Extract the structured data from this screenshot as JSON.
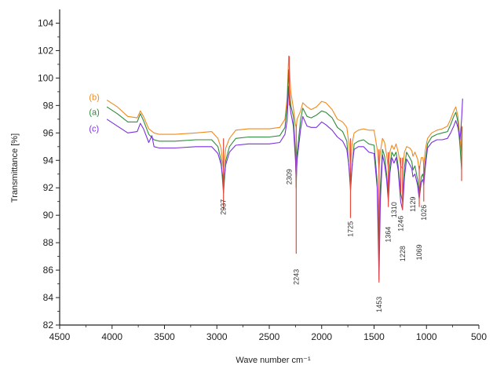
{
  "chart_data": {
    "type": "line",
    "title": "",
    "xlabel": "Wave number cm⁻¹",
    "ylabel": "Transmittance [%]",
    "xlim": [
      4500,
      500
    ],
    "ylim": [
      82,
      105
    ],
    "x_reversed": true,
    "x_ticks": [
      4500,
      4000,
      3500,
      3000,
      2500,
      2000,
      1500,
      1000,
      500
    ],
    "y_ticks": [
      82,
      84,
      86,
      88,
      90,
      92,
      94,
      96,
      98,
      100,
      102,
      104
    ],
    "grid": false,
    "legend": "in-plot labels (left)",
    "series": [
      {
        "name": "(b)",
        "color": "#ee8a1e",
        "points": [
          [
            4050,
            98.4
          ],
          [
            3950,
            97.9
          ],
          [
            3850,
            97.2
          ],
          [
            3760,
            97.1
          ],
          [
            3730,
            97.6
          ],
          [
            3700,
            97.2
          ],
          [
            3650,
            96.3
          ],
          [
            3600,
            96.0
          ],
          [
            3550,
            95.9
          ],
          [
            3400,
            95.9
          ],
          [
            3200,
            96.0
          ],
          [
            3050,
            96.1
          ],
          [
            2990,
            95.6
          ],
          [
            2960,
            94.9
          ],
          [
            2937,
            93.2
          ],
          [
            2915,
            94.9
          ],
          [
            2880,
            95.6
          ],
          [
            2820,
            96.2
          ],
          [
            2700,
            96.3
          ],
          [
            2500,
            96.3
          ],
          [
            2400,
            96.4
          ],
          [
            2350,
            97.0
          ],
          [
            2330,
            98.5
          ],
          [
            2315,
            101.6
          ],
          [
            2309,
            100.8
          ],
          [
            2295,
            99.0
          ],
          [
            2270,
            97.8
          ],
          [
            2250,
            96.6
          ],
          [
            2243,
            96.4
          ],
          [
            2235,
            97.0
          ],
          [
            2200,
            97.6
          ],
          [
            2180,
            98.2
          ],
          [
            2140,
            97.9
          ],
          [
            2100,
            97.7
          ],
          [
            2050,
            97.9
          ],
          [
            2000,
            98.3
          ],
          [
            1960,
            98.2
          ],
          [
            1900,
            97.7
          ],
          [
            1850,
            97.0
          ],
          [
            1800,
            96.8
          ],
          [
            1760,
            96.4
          ],
          [
            1740,
            95.2
          ],
          [
            1725,
            93.5
          ],
          [
            1710,
            95.2
          ],
          [
            1690,
            96.0
          ],
          [
            1650,
            96.2
          ],
          [
            1600,
            96.3
          ],
          [
            1550,
            96.2
          ],
          [
            1500,
            96.2
          ],
          [
            1470,
            94.8
          ],
          [
            1453,
            93.4
          ],
          [
            1440,
            94.6
          ],
          [
            1420,
            95.6
          ],
          [
            1400,
            95.3
          ],
          [
            1380,
            94.4
          ],
          [
            1364,
            93.4
          ],
          [
            1350,
            94.6
          ],
          [
            1330,
            95.1
          ],
          [
            1310,
            94.8
          ],
          [
            1290,
            95.2
          ],
          [
            1270,
            94.6
          ],
          [
            1246,
            93.6
          ],
          [
            1228,
            93.4
          ],
          [
            1210,
            94.6
          ],
          [
            1190,
            95.0
          ],
          [
            1160,
            94.9
          ],
          [
            1140,
            94.7
          ],
          [
            1129,
            94.3
          ],
          [
            1110,
            94.6
          ],
          [
            1085,
            94.1
          ],
          [
            1069,
            93.3
          ],
          [
            1050,
            94.2
          ],
          [
            1035,
            94.2
          ],
          [
            1026,
            93.7
          ],
          [
            1010,
            94.8
          ],
          [
            990,
            95.6
          ],
          [
            950,
            96.0
          ],
          [
            900,
            96.2
          ],
          [
            850,
            96.3
          ],
          [
            800,
            96.5
          ],
          [
            770,
            97.0
          ],
          [
            740,
            97.6
          ],
          [
            720,
            97.9
          ],
          [
            700,
            97.2
          ],
          [
            680,
            95.6
          ],
          [
            665,
            94.5
          ],
          [
            660,
            96.5
          ]
        ]
      },
      {
        "name": "(a)",
        "color": "#2e8b3a",
        "points": [
          [
            4050,
            97.9
          ],
          [
            3950,
            97.4
          ],
          [
            3850,
            96.8
          ],
          [
            3760,
            96.8
          ],
          [
            3730,
            97.4
          ],
          [
            3700,
            96.9
          ],
          [
            3650,
            95.9
          ],
          [
            3600,
            95.5
          ],
          [
            3550,
            95.4
          ],
          [
            3400,
            95.4
          ],
          [
            3200,
            95.5
          ],
          [
            3050,
            95.5
          ],
          [
            2990,
            95.0
          ],
          [
            2960,
            94.0
          ],
          [
            2937,
            91.6
          ],
          [
            2915,
            94.0
          ],
          [
            2880,
            95.0
          ],
          [
            2820,
            95.6
          ],
          [
            2700,
            95.7
          ],
          [
            2500,
            95.7
          ],
          [
            2400,
            95.8
          ],
          [
            2350,
            96.4
          ],
          [
            2330,
            98.0
          ],
          [
            2315,
            100.6
          ],
          [
            2309,
            99.2
          ],
          [
            2295,
            98.0
          ],
          [
            2270,
            97.2
          ],
          [
            2250,
            94.5
          ],
          [
            2243,
            92.0
          ],
          [
            2235,
            94.5
          ],
          [
            2200,
            97.0
          ],
          [
            2180,
            97.8
          ],
          [
            2140,
            97.2
          ],
          [
            2100,
            97.1
          ],
          [
            2050,
            97.3
          ],
          [
            2000,
            97.6
          ],
          [
            1960,
            97.5
          ],
          [
            1900,
            97.1
          ],
          [
            1850,
            96.4
          ],
          [
            1800,
            96.1
          ],
          [
            1760,
            95.4
          ],
          [
            1740,
            93.5
          ],
          [
            1725,
            91.8
          ],
          [
            1710,
            93.5
          ],
          [
            1690,
            95.2
          ],
          [
            1650,
            95.4
          ],
          [
            1600,
            95.5
          ],
          [
            1550,
            95.2
          ],
          [
            1500,
            95.1
          ],
          [
            1470,
            92.5
          ],
          [
            1453,
            88.0
          ],
          [
            1440,
            92.0
          ],
          [
            1420,
            94.8
          ],
          [
            1400,
            94.3
          ],
          [
            1380,
            93.0
          ],
          [
            1364,
            91.4
          ],
          [
            1350,
            93.6
          ],
          [
            1330,
            94.6
          ],
          [
            1310,
            94.3
          ],
          [
            1290,
            94.6
          ],
          [
            1270,
            93.6
          ],
          [
            1246,
            91.6
          ],
          [
            1228,
            91.0
          ],
          [
            1210,
            93.5
          ],
          [
            1190,
            94.6
          ],
          [
            1160,
            94.2
          ],
          [
            1140,
            93.9
          ],
          [
            1129,
            93.3
          ],
          [
            1110,
            93.6
          ],
          [
            1085,
            92.6
          ],
          [
            1069,
            91.5
          ],
          [
            1050,
            92.8
          ],
          [
            1035,
            93.0
          ],
          [
            1026,
            92.5
          ],
          [
            1010,
            94.0
          ],
          [
            990,
            95.2
          ],
          [
            950,
            95.7
          ],
          [
            900,
            95.9
          ],
          [
            850,
            96.0
          ],
          [
            800,
            96.1
          ],
          [
            770,
            96.6
          ],
          [
            740,
            97.2
          ],
          [
            720,
            97.5
          ],
          [
            700,
            96.8
          ],
          [
            680,
            95.0
          ],
          [
            665,
            93.3
          ],
          [
            660,
            96.4
          ]
        ]
      },
      {
        "name": "(c)",
        "color": "#7b2fe0",
        "points": [
          [
            4050,
            97.0
          ],
          [
            3950,
            96.5
          ],
          [
            3850,
            96.0
          ],
          [
            3760,
            96.1
          ],
          [
            3730,
            96.7
          ],
          [
            3700,
            96.3
          ],
          [
            3650,
            95.3
          ],
          [
            3620,
            95.8
          ],
          [
            3600,
            95.0
          ],
          [
            3550,
            94.9
          ],
          [
            3400,
            94.9
          ],
          [
            3200,
            95.0
          ],
          [
            3050,
            95.0
          ],
          [
            2990,
            94.5
          ],
          [
            2960,
            93.7
          ],
          [
            2937,
            92.4
          ],
          [
            2915,
            93.7
          ],
          [
            2880,
            94.6
          ],
          [
            2820,
            95.1
          ],
          [
            2700,
            95.2
          ],
          [
            2500,
            95.2
          ],
          [
            2400,
            95.3
          ],
          [
            2350,
            95.9
          ],
          [
            2330,
            96.9
          ],
          [
            2315,
            99.4
          ],
          [
            2309,
            98.5
          ],
          [
            2295,
            97.5
          ],
          [
            2270,
            96.5
          ],
          [
            2250,
            94.0
          ],
          [
            2243,
            92.6
          ],
          [
            2235,
            94.0
          ],
          [
            2200,
            96.3
          ],
          [
            2180,
            97.2
          ],
          [
            2140,
            96.5
          ],
          [
            2100,
            96.4
          ],
          [
            2050,
            96.4
          ],
          [
            2000,
            96.8
          ],
          [
            1960,
            96.6
          ],
          [
            1900,
            96.2
          ],
          [
            1850,
            95.7
          ],
          [
            1800,
            95.4
          ],
          [
            1760,
            94.8
          ],
          [
            1740,
            93.6
          ],
          [
            1725,
            92.1
          ],
          [
            1710,
            93.6
          ],
          [
            1690,
            94.8
          ],
          [
            1650,
            95.0
          ],
          [
            1600,
            95.0
          ],
          [
            1550,
            94.6
          ],
          [
            1500,
            94.5
          ],
          [
            1470,
            92.0
          ],
          [
            1453,
            85.3
          ],
          [
            1440,
            91.0
          ],
          [
            1420,
            94.4
          ],
          [
            1400,
            93.7
          ],
          [
            1380,
            92.6
          ],
          [
            1364,
            91.0
          ],
          [
            1350,
            93.0
          ],
          [
            1330,
            94.2
          ],
          [
            1310,
            93.8
          ],
          [
            1290,
            94.2
          ],
          [
            1270,
            93.3
          ],
          [
            1246,
            91.0
          ],
          [
            1228,
            90.4
          ],
          [
            1210,
            92.8
          ],
          [
            1190,
            94.1
          ],
          [
            1160,
            93.7
          ],
          [
            1140,
            93.4
          ],
          [
            1129,
            92.8
          ],
          [
            1110,
            93.0
          ],
          [
            1085,
            92.2
          ],
          [
            1069,
            91.2
          ],
          [
            1050,
            92.4
          ],
          [
            1035,
            92.6
          ],
          [
            1026,
            92.2
          ],
          [
            1010,
            93.6
          ],
          [
            990,
            94.9
          ],
          [
            950,
            95.3
          ],
          [
            900,
            95.5
          ],
          [
            850,
            95.5
          ],
          [
            800,
            95.6
          ],
          [
            770,
            96.0
          ],
          [
            740,
            96.5
          ],
          [
            720,
            96.9
          ],
          [
            700,
            96.4
          ],
          [
            680,
            95.5
          ],
          [
            665,
            97.0
          ],
          [
            655,
            98.5
          ]
        ]
      }
    ],
    "spikes": [
      {
        "x": 2937,
        "from": 95.6,
        "to": 90.4
      },
      {
        "x": 2243,
        "from": 96.6,
        "to": 87.2
      },
      {
        "x": 1725,
        "from": 95.6,
        "to": 89.8
      },
      {
        "x": 1453,
        "from": 94.8,
        "to": 85.1
      },
      {
        "x": 1364,
        "from": 94.6,
        "to": 90.6
      },
      {
        "x": 1246,
        "from": 94.2,
        "to": 91.6
      },
      {
        "x": 1228,
        "from": 94.2,
        "to": 90.4
      },
      {
        "x": 1069,
        "from": 93.6,
        "to": 90.6
      },
      {
        "x": 1026,
        "from": 93.8,
        "to": 91.0
      },
      {
        "x": 2309,
        "from": 98.0,
        "to": 101.6
      },
      {
        "x": 665,
        "from": 96.5,
        "to": 92.5
      }
    ],
    "spike_color": "#e8493a",
    "annotations": [
      {
        "text": "2937",
        "x": 2937,
        "y": 90.6
      },
      {
        "text": "2309",
        "x": 2309,
        "y": 92.8
      },
      {
        "text": "2243",
        "x": 2243,
        "y": 85.5
      },
      {
        "text": "1725",
        "x": 1725,
        "y": 89.0
      },
      {
        "text": "1453",
        "x": 1453,
        "y": 83.5
      },
      {
        "text": "1364",
        "x": 1364,
        "y": 88.6
      },
      {
        "text": "1310",
        "x": 1310,
        "y": 90.4
      },
      {
        "text": "1246",
        "x": 1246,
        "y": 89.4
      },
      {
        "text": "1228",
        "x": 1228,
        "y": 87.2
      },
      {
        "text": "1129",
        "x": 1129,
        "y": 90.8
      },
      {
        "text": "1069",
        "x": 1069,
        "y": 87.3
      },
      {
        "text": "1026",
        "x": 1026,
        "y": 90.2
      }
    ],
    "series_labels": [
      {
        "text": "(b)",
        "x": 4220,
        "y": 98.4,
        "color": "#ee8a1e"
      },
      {
        "text": "(a)",
        "x": 4220,
        "y": 97.3,
        "color": "#2e8b3a"
      },
      {
        "text": "(c)",
        "x": 4220,
        "y": 96.1,
        "color": "#7b2fe0"
      }
    ]
  }
}
